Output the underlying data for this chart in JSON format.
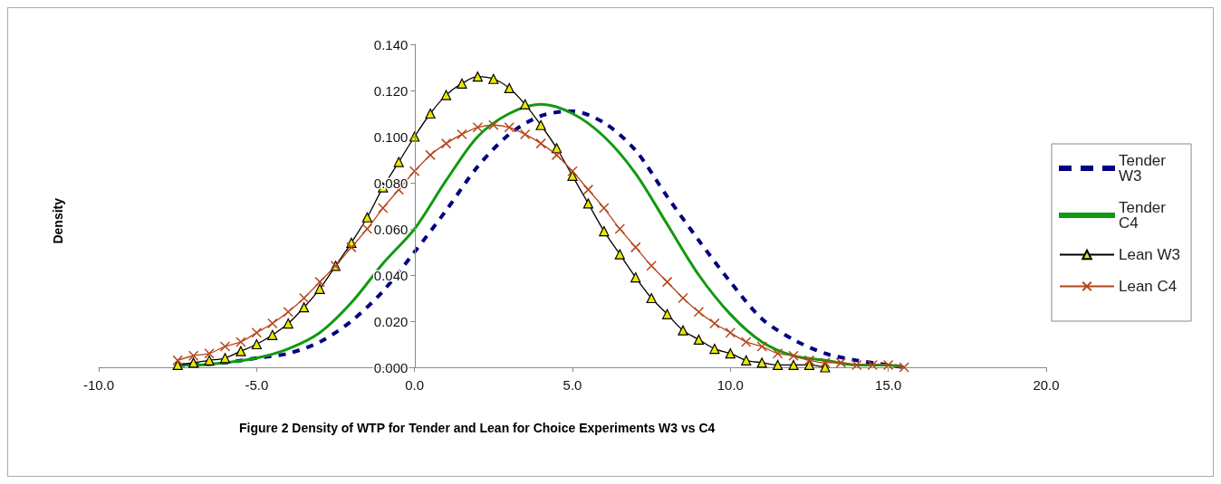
{
  "chart_data": {
    "type": "line",
    "title": "Figure 2 Density of WTP for Tender and Lean for Choice Experiments W3 vs C4",
    "ylabel": "Density",
    "xlim": [
      -10,
      20
    ],
    "xticks": [
      {
        "value": -10,
        "label": "-10.0"
      },
      {
        "value": -5,
        "label": "-5.0"
      },
      {
        "value": 0,
        "label": "0.0"
      },
      {
        "value": 5,
        "label": "5.0"
      },
      {
        "value": 10,
        "label": "10.0"
      },
      {
        "value": 15,
        "label": "15.0"
      },
      {
        "value": 20,
        "label": "20.0"
      }
    ],
    "ylim": [
      0,
      0.14
    ],
    "yticks": [
      {
        "value": 0,
        "label": "0.000"
      },
      {
        "value": 0.02,
        "label": "0.020"
      },
      {
        "value": 0.04,
        "label": "0.040"
      },
      {
        "value": 0.06,
        "label": "0.060"
      },
      {
        "value": 0.08,
        "label": "0.080"
      },
      {
        "value": 0.1,
        "label": "0.100"
      },
      {
        "value": 0.12,
        "label": "0.120"
      },
      {
        "value": 0.14,
        "label": "0.140"
      }
    ],
    "grid": false,
    "legend": "right",
    "series": [
      {
        "name": "Tender W3",
        "color": "#000080",
        "line_style": "dashed",
        "marker": "none",
        "x": [
          -7.5,
          -7,
          -6,
          -5,
          -4,
          -3,
          -2,
          -1,
          0,
          1,
          2,
          3,
          4,
          5,
          6,
          7,
          8,
          9,
          10,
          11,
          12,
          13,
          14,
          15,
          15.5
        ],
        "values": [
          0.001,
          0.001,
          0.002,
          0.004,
          0.006,
          0.011,
          0.02,
          0.033,
          0.05,
          0.068,
          0.087,
          0.101,
          0.109,
          0.111,
          0.106,
          0.094,
          0.074,
          0.055,
          0.037,
          0.021,
          0.012,
          0.006,
          0.003,
          0.001,
          0.0
        ]
      },
      {
        "name": "Tender C4",
        "color": "#119911",
        "line_style": "solid",
        "marker": "none",
        "x": [
          -7.5,
          -7,
          -6,
          -5,
          -4,
          -3,
          -2,
          -1,
          0,
          1,
          2,
          3,
          4,
          5,
          6,
          7,
          8,
          9,
          10,
          11,
          12,
          13,
          14,
          15,
          15.5
        ],
        "values": [
          0.001,
          0.001,
          0.002,
          0.004,
          0.008,
          0.015,
          0.028,
          0.045,
          0.06,
          0.081,
          0.1,
          0.11,
          0.114,
          0.11,
          0.1,
          0.084,
          0.062,
          0.04,
          0.023,
          0.011,
          0.005,
          0.003,
          0.001,
          0.001,
          0.0
        ]
      },
      {
        "name": "Lean W3",
        "color": "#000000",
        "line_style": "solid",
        "marker": "triangle",
        "x": [
          -7.5,
          -7,
          -6.5,
          -6,
          -5.5,
          -5,
          -4.5,
          -4,
          -3.5,
          -3,
          -2.5,
          -2,
          -1.5,
          -1,
          -0.5,
          0,
          0.5,
          1,
          1.5,
          2,
          2.5,
          3,
          3.5,
          4,
          4.5,
          5,
          5.5,
          6,
          6.5,
          7,
          7.5,
          8,
          8.5,
          9,
          9.5,
          10,
          10.5,
          11,
          11.5,
          12,
          12.5,
          13
        ],
        "values": [
          0.001,
          0.002,
          0.003,
          0.004,
          0.007,
          0.01,
          0.014,
          0.019,
          0.026,
          0.034,
          0.044,
          0.054,
          0.065,
          0.078,
          0.089,
          0.1,
          0.11,
          0.118,
          0.123,
          0.126,
          0.125,
          0.121,
          0.114,
          0.105,
          0.095,
          0.083,
          0.071,
          0.059,
          0.049,
          0.039,
          0.03,
          0.023,
          0.016,
          0.012,
          0.008,
          0.006,
          0.003,
          0.002,
          0.001,
          0.001,
          0.001,
          0.0
        ]
      },
      {
        "name": "Lean C4",
        "color": "#b5461c",
        "line_style": "solid",
        "marker": "cross",
        "x": [
          -7.5,
          -7,
          -6.5,
          -6,
          -5.5,
          -5,
          -4.5,
          -4,
          -3.5,
          -3,
          -2.5,
          -2,
          -1.5,
          -1,
          -0.5,
          0,
          0.5,
          1,
          1.5,
          2,
          2.5,
          3,
          3.5,
          4,
          4.5,
          5,
          5.5,
          6,
          6.5,
          7,
          7.5,
          8,
          8.5,
          9,
          9.5,
          10,
          10.5,
          11,
          11.5,
          12,
          12.5,
          13,
          13.5,
          14,
          14.5,
          15,
          15.5
        ],
        "values": [
          0.003,
          0.005,
          0.006,
          0.009,
          0.011,
          0.015,
          0.019,
          0.024,
          0.03,
          0.037,
          0.044,
          0.052,
          0.06,
          0.069,
          0.077,
          0.085,
          0.092,
          0.097,
          0.101,
          0.104,
          0.105,
          0.104,
          0.101,
          0.097,
          0.092,
          0.085,
          0.077,
          0.069,
          0.06,
          0.052,
          0.044,
          0.037,
          0.03,
          0.024,
          0.019,
          0.015,
          0.011,
          0.009,
          0.006,
          0.005,
          0.003,
          0.002,
          0.002,
          0.001,
          0.001,
          0.001,
          0.0
        ]
      }
    ]
  }
}
